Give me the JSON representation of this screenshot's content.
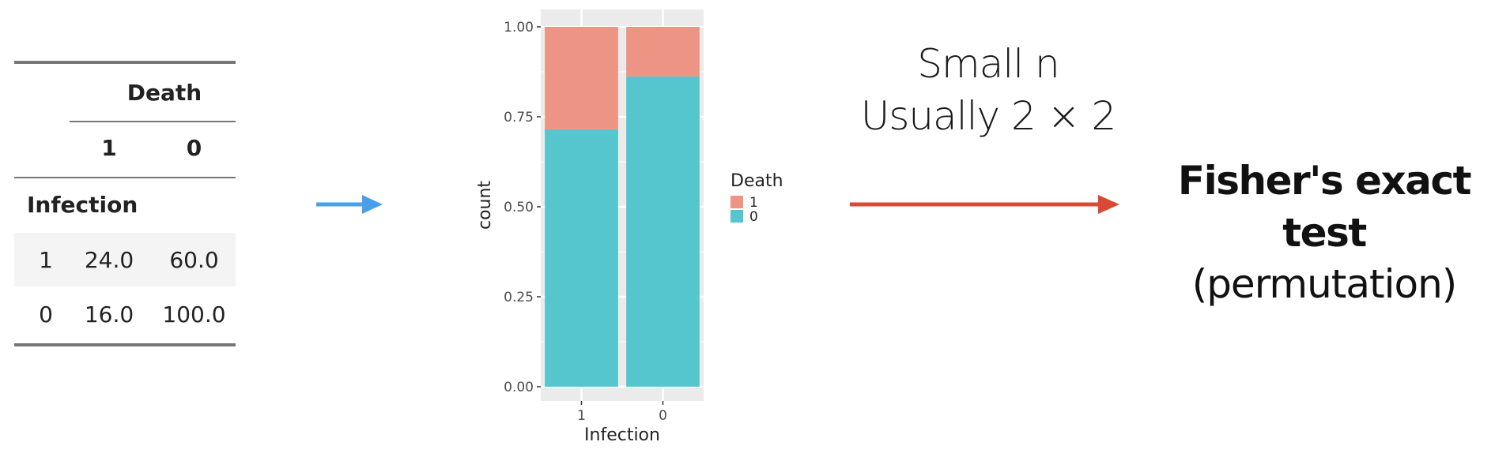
{
  "table": {
    "col_group": "Death",
    "col_levels": [
      "1",
      "0"
    ],
    "row_group": "Infection",
    "rows": [
      {
        "label": "1",
        "values": [
          "24.0",
          "60.0"
        ]
      },
      {
        "label": "0",
        "values": [
          "16.0",
          "100.0"
        ]
      }
    ]
  },
  "chart_data": {
    "type": "bar",
    "stacked": true,
    "categories": [
      "1",
      "0"
    ],
    "series": [
      {
        "name": "1",
        "values": [
          0.285,
          0.138
        ],
        "color": "#ee9485"
      },
      {
        "name": "0",
        "values": [
          0.715,
          0.862
        ],
        "color": "#55c6cd"
      }
    ],
    "xlabel": "Infection",
    "ylabel": "count",
    "ylim": [
      0,
      1
    ],
    "yticks": [
      "0.00",
      "0.25",
      "0.50",
      "0.75",
      "1.00"
    ],
    "legend_title": "Death",
    "legend_position": "right",
    "grid": true,
    "panel_color": "#ebebeb"
  },
  "note": {
    "line1": "Small n",
    "line2": "Usually 2 × 2"
  },
  "result": {
    "line1": "Fisher's exact test",
    "line2": "(permutation)"
  },
  "colors": {
    "arrow_left": "#4a9fea",
    "arrow_right": "#d94a36"
  }
}
